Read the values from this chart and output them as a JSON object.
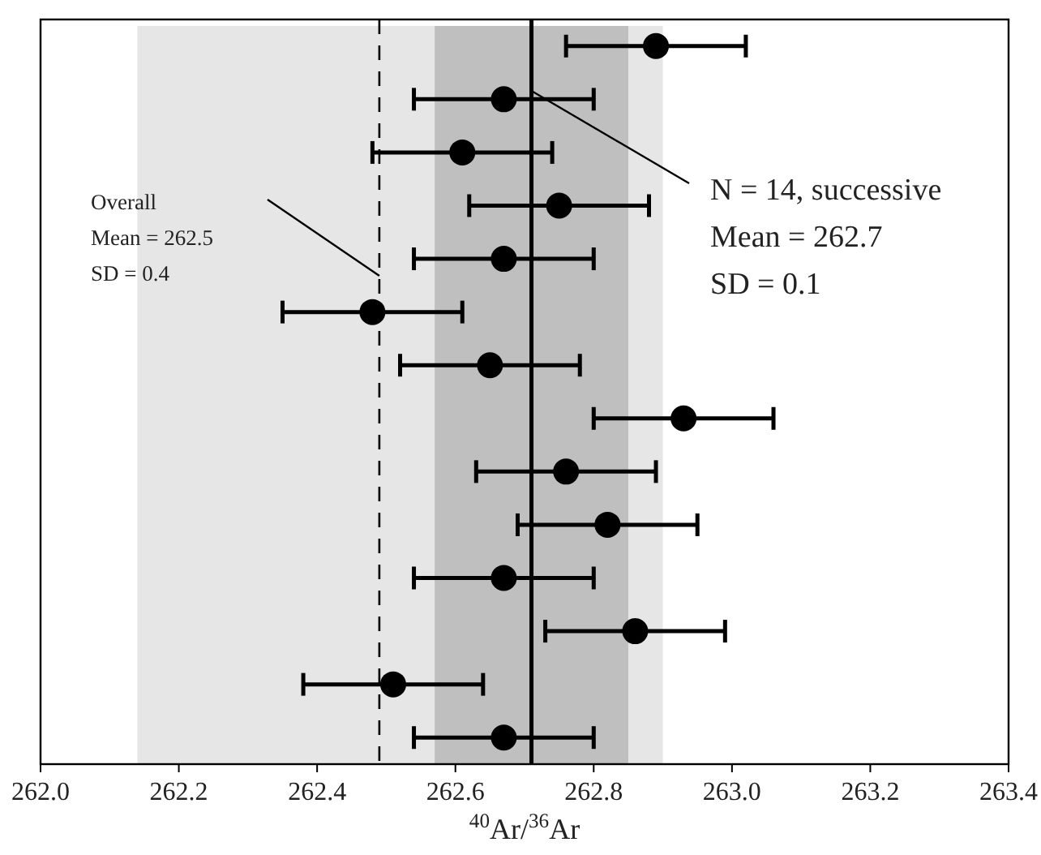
{
  "chart_data": {
    "type": "scatter",
    "orientation": "horizontal",
    "xlabel": "$^{40}$Ar/$^{36}$Ar",
    "categories": [
      null,
      null,
      null,
      null,
      null,
      null,
      null,
      null,
      null,
      null,
      null,
      null,
      null,
      null
    ],
    "values": [
      262.89,
      262.67,
      262.61,
      262.75,
      262.67,
      262.48,
      262.65,
      262.93,
      262.76,
      262.82,
      262.67,
      262.86,
      262.51,
      262.67
    ],
    "errors": [
      0.13,
      0.13,
      0.13,
      0.13,
      0.13,
      0.13,
      0.13,
      0.13,
      0.13,
      0.13,
      0.13,
      0.13,
      0.13,
      0.13
    ],
    "color": "#000000",
    "marker": "circle",
    "grid": false,
    "xlim": [
      262.0,
      263.4
    ],
    "xticks": [
      {
        "value": 262.0,
        "label": "262.0"
      },
      {
        "value": 262.2,
        "label": "262.2"
      },
      {
        "value": 262.4,
        "label": "262.4"
      },
      {
        "value": 262.6,
        "label": "262.6"
      },
      {
        "value": 262.8,
        "label": "262.8"
      },
      {
        "value": 263.0,
        "label": "263.0"
      },
      {
        "value": 263.2,
        "label": "263.2"
      },
      {
        "value": 263.4,
        "label": "263.4"
      }
    ],
    "bands": [
      {
        "axis": "x",
        "from": 262.14,
        "to": 262.9,
        "color": "#e6e6e6"
      },
      {
        "axis": "x",
        "from": 262.57,
        "to": 262.85,
        "color": "#bfbfbf"
      }
    ],
    "ref_lines": [
      {
        "axis": "x",
        "value": 262.49,
        "line_style": "dashed"
      },
      {
        "axis": "x",
        "value": 262.71,
        "line_style": "solid"
      }
    ],
    "annotations": [
      "Overall\nMean = 262.5\nSD = 0.4",
      "N = 14, successive\nMean = 262.7\nSD = 0.1"
    ]
  }
}
